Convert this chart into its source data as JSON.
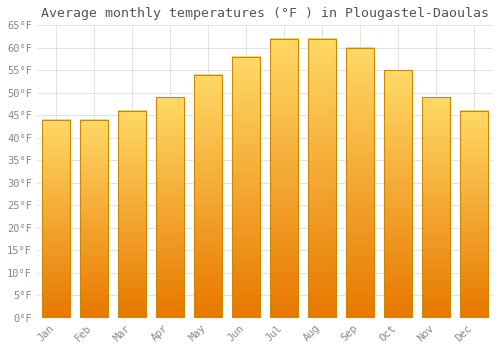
{
  "title": "Average monthly temperatures (°F ) in Plougastel-Daoulas",
  "months": [
    "Jan",
    "Feb",
    "Mar",
    "Apr",
    "May",
    "Jun",
    "Jul",
    "Aug",
    "Sep",
    "Oct",
    "Nov",
    "Dec"
  ],
  "values": [
    44,
    44,
    46,
    49,
    54,
    58,
    62,
    62,
    60,
    55,
    49,
    46
  ],
  "bar_color_top": "#FFD966",
  "bar_color_bottom": "#E87800",
  "bar_edge_color": "#CC8800",
  "ylim": [
    0,
    65
  ],
  "ytick_step": 5,
  "ylabel_suffix": "°F",
  "background_color": "#FFFFFF",
  "grid_color": "#DDDDDD",
  "title_fontsize": 9.5,
  "tick_fontsize": 7.5,
  "font_family": "monospace",
  "tick_color": "#888888",
  "title_color": "#555555"
}
